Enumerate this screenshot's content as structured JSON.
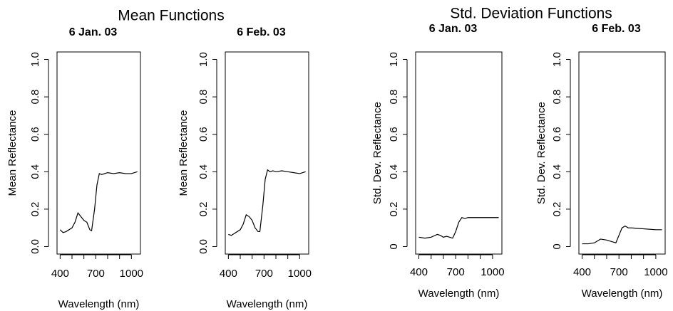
{
  "titles": [
    "Mean Functions",
    "Std. Deviation Functions"
  ],
  "chart_data": [
    {
      "type": "line",
      "title": "6 Jan. 03",
      "xlabel": "Wavelength (nm)",
      "ylabel": "Mean Reflectance",
      "color": "#000000",
      "x": [
        400,
        425,
        450,
        475,
        500,
        525,
        550,
        575,
        600,
        625,
        650,
        665,
        690,
        710,
        730,
        750,
        775,
        800,
        850,
        900,
        950,
        1000,
        1050
      ],
      "values": [
        0.09,
        0.075,
        0.08,
        0.09,
        0.1,
        0.13,
        0.18,
        0.16,
        0.14,
        0.13,
        0.09,
        0.085,
        0.2,
        0.33,
        0.39,
        0.385,
        0.39,
        0.395,
        0.39,
        0.395,
        0.39,
        0.39,
        0.4
      ],
      "xlim": [
        374,
        1076
      ],
      "ylim": [
        -0.04,
        1.04
      ],
      "xticks": [
        400,
        700,
        1000
      ],
      "xminorticks": [
        500,
        600,
        800,
        900
      ],
      "yticks": [
        {
          "value": 0,
          "label": "0.0"
        },
        0.2,
        0.4,
        0.6,
        0.8,
        {
          "value": 1,
          "label": "1.0"
        }
      ]
    },
    {
      "type": "line",
      "title": "6 Feb. 03",
      "xlabel": "Wavelength (nm)",
      "ylabel": "Mean Reflectance",
      "color": "#000000",
      "x": [
        400,
        425,
        450,
        475,
        500,
        525,
        550,
        575,
        600,
        625,
        650,
        665,
        690,
        710,
        730,
        750,
        775,
        800,
        850,
        900,
        950,
        1000,
        1050
      ],
      "values": [
        0.065,
        0.06,
        0.07,
        0.08,
        0.09,
        0.12,
        0.17,
        0.16,
        0.14,
        0.1,
        0.08,
        0.08,
        0.22,
        0.36,
        0.41,
        0.4,
        0.405,
        0.4,
        0.405,
        0.4,
        0.395,
        0.39,
        0.4
      ],
      "xlim": [
        374,
        1076
      ],
      "ylim": [
        -0.04,
        1.04
      ],
      "xticks": [
        400,
        700,
        1000
      ],
      "xminorticks": [
        500,
        600,
        800,
        900
      ],
      "yticks": [
        {
          "value": 0,
          "label": "0.0"
        },
        0.2,
        0.4,
        0.6,
        0.8,
        {
          "value": 1,
          "label": "1.0"
        }
      ]
    },
    {
      "type": "line",
      "title": "6 Jan. 03",
      "xlabel": "Wavelength (nm)",
      "ylabel": "Std. Dev. Reflectance",
      "color": "#000000",
      "x": [
        400,
        450,
        500,
        550,
        575,
        600,
        625,
        650,
        675,
        700,
        725,
        750,
        775,
        800,
        900,
        1000,
        1050
      ],
      "values": [
        0.05,
        0.045,
        0.05,
        0.065,
        0.06,
        0.05,
        0.055,
        0.05,
        0.045,
        0.08,
        0.13,
        0.155,
        0.15,
        0.155,
        0.155,
        0.155,
        0.155
      ],
      "xlim": [
        374,
        1076
      ],
      "ylim": [
        -0.04,
        1.04
      ],
      "xticks": [
        400,
        700,
        1000
      ],
      "xminorticks": [
        500,
        600,
        800,
        900
      ],
      "yticks": [
        0,
        0.2,
        0.4,
        0.6,
        0.8,
        {
          "value": 1,
          "label": "1.0"
        }
      ]
    },
    {
      "type": "line",
      "title": "6 Feb. 03",
      "xlabel": "Wavelength (nm)",
      "ylabel": "Std. Dev. Reflectance",
      "color": "#000000",
      "x": [
        400,
        450,
        500,
        550,
        600,
        650,
        675,
        700,
        725,
        750,
        775,
        800,
        900,
        1000,
        1050
      ],
      "values": [
        0.015,
        0.015,
        0.02,
        0.04,
        0.035,
        0.025,
        0.02,
        0.06,
        0.1,
        0.11,
        0.1,
        0.1,
        0.095,
        0.09,
        0.09
      ],
      "xlim": [
        374,
        1076
      ],
      "ylim": [
        -0.04,
        1.04
      ],
      "xticks": [
        400,
        700,
        1000
      ],
      "xminorticks": [
        500,
        600,
        800,
        900
      ],
      "yticks": [
        0,
        0.2,
        0.4,
        0.6,
        0.8,
        {
          "value": 1,
          "label": "1.0"
        }
      ]
    }
  ]
}
